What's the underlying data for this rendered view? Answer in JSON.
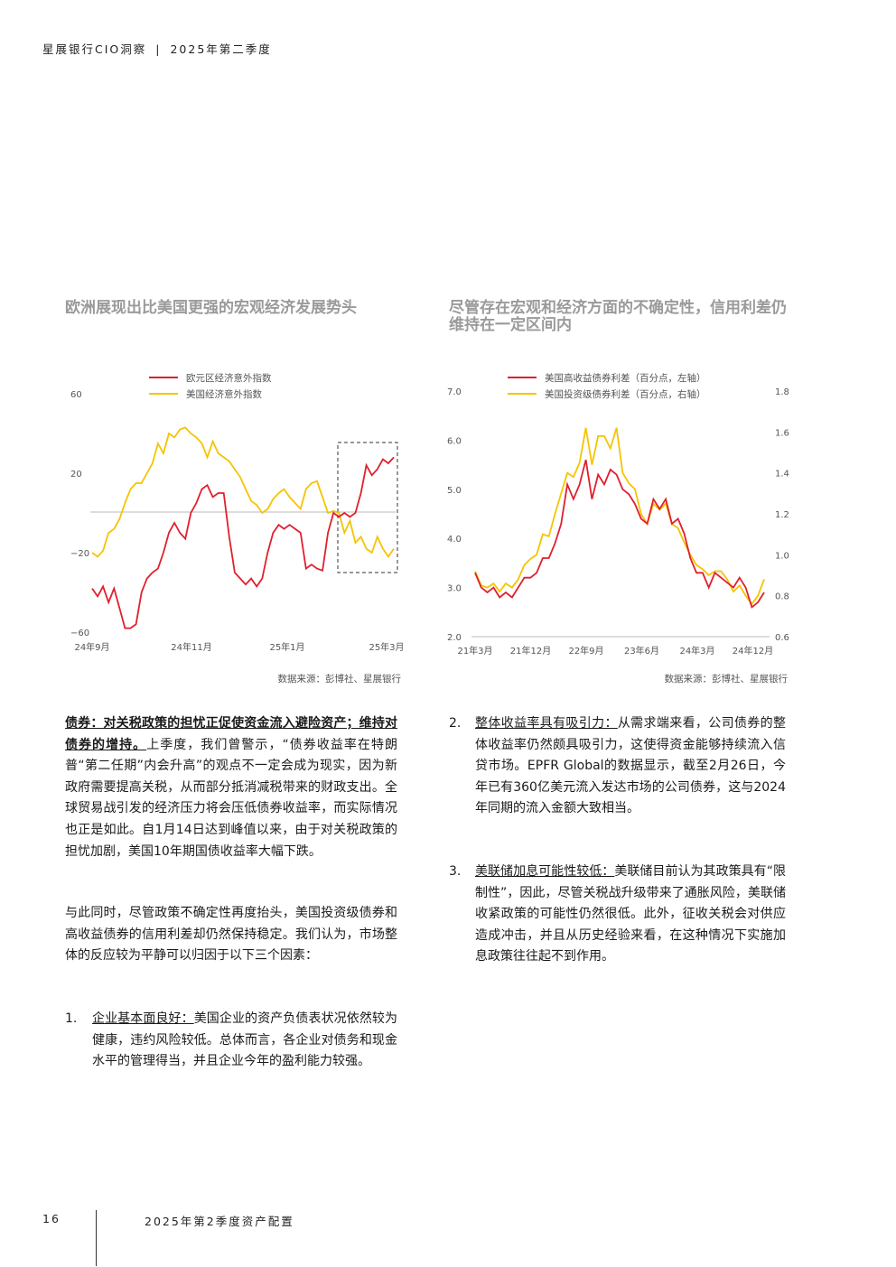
{
  "header": {
    "brand": "星展银行CIO洞察",
    "sep": "|",
    "issue": "2025年第二季度"
  },
  "chart_left": {
    "title": "欧洲展现出比美国更强的宏观经济发展势头",
    "source": "数据来源：彭博社、星展银行",
    "chart_data": {
      "type": "line",
      "legend": [
        "欧元区经济意外指数",
        "美国经济意外指数"
      ],
      "colors": {
        "euro": "#e0202e",
        "us": "#f5c400"
      },
      "yticks": [
        "60",
        "20",
        "−20",
        "−60"
      ],
      "ylim": [
        -60,
        60
      ],
      "xticks": [
        "24年9月",
        "24年11月",
        "25年1月",
        "25年3月"
      ],
      "series": [
        {
          "name": "欧元区经济意外指数",
          "values": [
            -38,
            -42,
            -37,
            -45,
            -38,
            -48,
            -58,
            -58,
            -56,
            -40,
            -33,
            -30,
            -28,
            -20,
            -10,
            -5,
            -10,
            -13,
            0,
            5,
            12,
            14,
            8,
            10,
            10,
            -12,
            -30,
            -33,
            -36,
            -33,
            -37,
            -33,
            -20,
            -10,
            -6,
            -8,
            -6,
            -8,
            -10,
            -28,
            -26,
            -28,
            -29,
            -10,
            0,
            -2,
            0,
            -2,
            0,
            10,
            24,
            19,
            22,
            27,
            25,
            28
          ]
        },
        {
          "name": "美国经济意外指数",
          "values": [
            -20,
            -22,
            -19,
            -10,
            -8,
            -3,
            5,
            12,
            15,
            15,
            20,
            25,
            35,
            30,
            40,
            38,
            42,
            43,
            40,
            38,
            35,
            28,
            36,
            30,
            28,
            26,
            22,
            18,
            12,
            6,
            4,
            0,
            2,
            7,
            10,
            12,
            8,
            5,
            2,
            12,
            15,
            16,
            8,
            0,
            1,
            0,
            -10,
            -4,
            -15,
            -12,
            -18,
            -20,
            -12,
            -18,
            -22,
            -18
          ]
        }
      ],
      "highlight_box": true
    }
  },
  "chart_right": {
    "title": "尽管存在宏观和经济方面的不确定性，信用利差仍维持在一定区间内",
    "source": "数据来源：彭博社、星展银行",
    "chart_data": {
      "type": "line",
      "legend": [
        "美国高收益债券利差（百分点，左轴）",
        "美国投资级债券利差（百分点，右轴）"
      ],
      "colors": {
        "hy": "#e0202e",
        "ig": "#f5c400"
      },
      "yticks_left": [
        "7.0",
        "6.0",
        "5.0",
        "4.0",
        "3.0",
        "2.0"
      ],
      "yticks_right": [
        "1.8",
        "1.6",
        "1.4",
        "1.2",
        "1.0",
        "0.8",
        "0.6"
      ],
      "ylim_left": [
        2.0,
        7.0
      ],
      "ylim_right": [
        0.6,
        1.8
      ],
      "xticks": [
        "21年3月",
        "21年12月",
        "22年9月",
        "23年6月",
        "24年3月",
        "24年12月"
      ],
      "series": [
        {
          "name": "美国高收益债券利差（百分点，左轴）",
          "axis": "left",
          "values": [
            3.3,
            3.0,
            2.9,
            3.0,
            2.8,
            2.9,
            2.8,
            3.0,
            3.2,
            3.2,
            3.3,
            3.6,
            3.6,
            3.9,
            4.3,
            5.1,
            4.8,
            5.1,
            5.6,
            4.8,
            5.3,
            5.1,
            5.4,
            5.3,
            5.0,
            4.9,
            4.7,
            4.4,
            4.3,
            4.8,
            4.6,
            4.8,
            4.3,
            4.4,
            4.1,
            3.6,
            3.3,
            3.3,
            3.0,
            3.3,
            3.2,
            3.1,
            3.0,
            3.2,
            3.0,
            2.6,
            2.7,
            2.9
          ]
        },
        {
          "name": "美国投资级债券利差（百分点，右轴）",
          "axis": "right",
          "values": [
            0.92,
            0.85,
            0.84,
            0.86,
            0.82,
            0.86,
            0.84,
            0.88,
            0.95,
            0.98,
            1.0,
            1.1,
            1.09,
            1.2,
            1.3,
            1.4,
            1.38,
            1.45,
            1.62,
            1.44,
            1.58,
            1.58,
            1.52,
            1.62,
            1.4,
            1.35,
            1.32,
            1.2,
            1.15,
            1.25,
            1.22,
            1.25,
            1.15,
            1.13,
            1.06,
            1.0,
            0.95,
            0.93,
            0.9,
            0.92,
            0.92,
            0.88,
            0.82,
            0.85,
            0.8,
            0.76,
            0.8,
            0.88
          ]
        }
      ]
    }
  },
  "left_text": {
    "p1_head": "债券：对关税政策的担忧正促使资金流入避险资产；维持对债券的增持。",
    "p1_body": "上季度，我们曾警示，“债券收益率在特朗普“第二任期”内会升高”的观点不一定会成为现实，因为新政府需要提高关税，从而部分抵消减税带来的财政支出。全球贸易战引发的经济压力将会压低债券收益率，而实际情况也正是如此。自1月14日达到峰值以来，由于对关税政策的担忧加剧，美国10年期国债收益率大幅下跌。",
    "p2": "与此同时，尽管政策不确定性再度抬头，美国投资级债券和高收益债券的信用利差却仍然保持稳定。我们认为，市场整体的反应较为平静可以归因于以下三个因素：",
    "item1_num": "1.",
    "item1_head": "企业基本面良好：",
    "item1_body": "美国企业的资产负债表状况依然较为健康，违约风险较低。总体而言，各企业对债务和现金水平的管理得当，并且企业今年的盈利能力较强。"
  },
  "right_text": {
    "item2_num": "2.",
    "item2_head": "整体收益率具有吸引力：",
    "item2_body": "从需求端来看，公司债券的整体收益率仍然颇具吸引力，这使得资金能够持续流入信贷市场。EPFR Global的数据显示，截至2月26日，今年已有360亿美元流入发达市场的公司债券，这与2024年同期的流入金额大致相当。",
    "item3_num": "3.",
    "item3_head": "美联储加息可能性较低：",
    "item3_body": "美联储目前认为其政策具有“限制性”，因此，尽管关税战升级带来了通胀风险，美联储收紧政策的可能性仍然很低。此外，征收关税会对供应造成冲击，并且从历史经验来看，在这种情况下实施加息政策往往起不到作用。"
  },
  "footer": {
    "page": "16",
    "title": "2025年第2季度资产配置"
  }
}
